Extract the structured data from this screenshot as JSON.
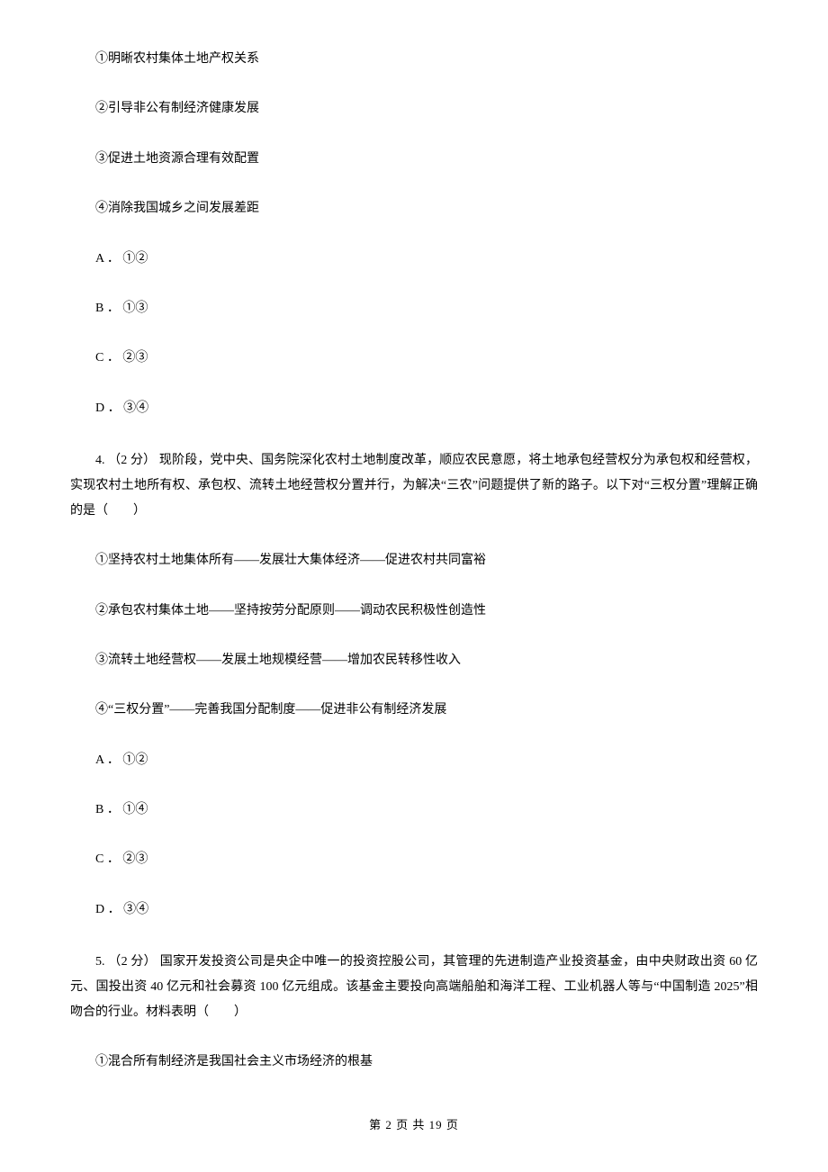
{
  "q3": {
    "opt1": "①明晰农村集体土地产权关系",
    "opt2": "②引导非公有制经济健康发展",
    "opt3": "③促进土地资源合理有效配置",
    "opt4": "④消除我国城乡之间发展差距",
    "choiceA": "A ． ①②",
    "choiceB": "B ． ①③",
    "choiceC": "C ． ②③",
    "choiceD": "D ． ③④"
  },
  "q4": {
    "stem": "4. （2 分） 现阶段，党中央、国务院深化农村土地制度改革，顺应农民意愿，将土地承包经营权分为承包权和经营权，实现农村土地所有权、承包权、流转土地经营权分置并行，为解决“三农”问题提供了新的路子。以下对“三权分置”理解正确的是（　　）",
    "opt1": "①坚持农村土地集体所有——发展壮大集体经济——促进农村共同富裕",
    "opt2": "②承包农村集体土地——坚持按劳分配原则——调动农民积极性创造性",
    "opt3": "③流转土地经营权——发展土地规模经营——增加农民转移性收入",
    "opt4": "④“三权分置”——完善我国分配制度——促进非公有制经济发展",
    "choiceA": "A ． ①②",
    "choiceB": "B ． ①④",
    "choiceC": "C ． ②③",
    "choiceD": "D ． ③④"
  },
  "q5": {
    "stem": "5. （2 分） 国家开发投资公司是央企中唯一的投资控股公司，其管理的先进制造产业投资基金，由中央财政出资 60 亿元、国投出资 40 亿元和社会募资 100 亿元组成。该基金主要投向高端船舶和海洋工程、工业机器人等与“中国制造 2025”相吻合的行业。材料表明（　　）",
    "opt1": "①混合所有制经济是我国社会主义市场经济的根基"
  },
  "footer": "第 2 页 共 19 页"
}
